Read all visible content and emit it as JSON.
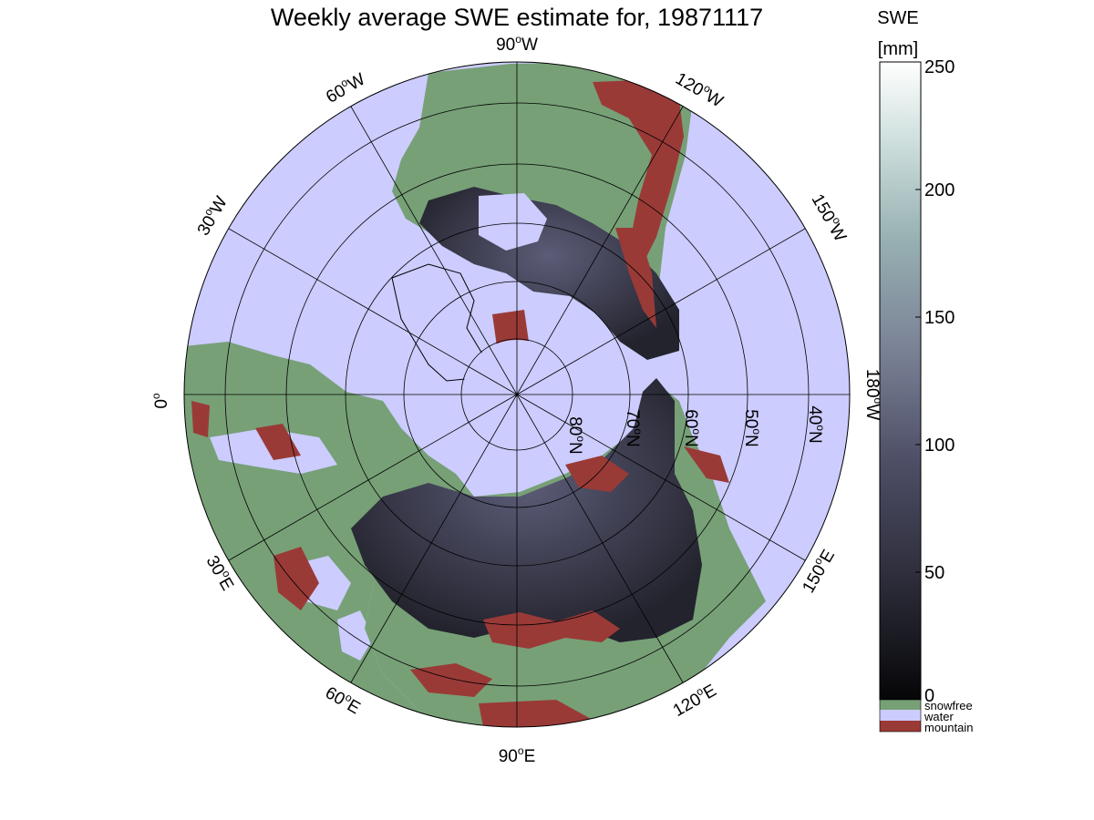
{
  "title": "Weekly average SWE estimate for, 19871117",
  "longitude_labels": [
    {
      "value": "90",
      "sup": "o",
      "hemi": "W"
    },
    {
      "value": "60",
      "sup": "o",
      "hemi": "W"
    },
    {
      "value": "120",
      "sup": "o",
      "hemi": "W"
    },
    {
      "value": "30",
      "sup": "o",
      "hemi": "W"
    },
    {
      "value": "150",
      "sup": "o",
      "hemi": "W"
    },
    {
      "value": "0",
      "sup": "o",
      "hemi": ""
    },
    {
      "value": "180",
      "sup": "o",
      "hemi": "W"
    },
    {
      "value": "30",
      "sup": "o",
      "hemi": "E"
    },
    {
      "value": "150",
      "sup": "o",
      "hemi": "E"
    },
    {
      "value": "60",
      "sup": "o",
      "hemi": "E"
    },
    {
      "value": "120",
      "sup": "o",
      "hemi": "E"
    },
    {
      "value": "90",
      "sup": "o",
      "hemi": "E"
    }
  ],
  "latitude_labels": [
    {
      "value": "80",
      "sup": "o",
      "hemi": "N"
    },
    {
      "value": "70",
      "sup": "o",
      "hemi": "N"
    },
    {
      "value": "60",
      "sup": "o",
      "hemi": "N"
    },
    {
      "value": "50",
      "sup": "o",
      "hemi": "N"
    },
    {
      "value": "40",
      "sup": "o",
      "hemi": "N"
    }
  ],
  "colorbar": {
    "label_line1": "SWE",
    "label_line2": "[mm]",
    "ticks": [
      "250",
      "200",
      "150",
      "100",
      "50",
      "0"
    ],
    "range": [
      0,
      250
    ],
    "colors": {
      "low": "#060608",
      "mid": "#6a6b88",
      "high": "#ffffff"
    }
  },
  "legend": [
    {
      "label": "snowfree",
      "color": "#77a077"
    },
    {
      "label": "water",
      "color": "#ccccff"
    },
    {
      "label": "mountain",
      "color": "#9a3a37"
    }
  ],
  "colors": {
    "water": "#ccccff",
    "land": "#77a077",
    "snow_dark": "#2a2a36",
    "snow_mid": "#4f4f66",
    "mountain": "#9a3a37",
    "grid": "#000000"
  }
}
